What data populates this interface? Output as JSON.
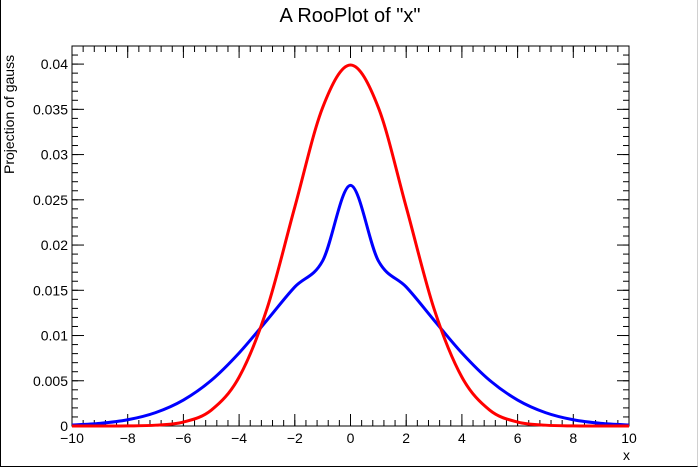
{
  "chart_data": {
    "type": "line",
    "title": "A RooPlot of \"x\"",
    "xlabel": "x",
    "ylabel": "Projection of gauss",
    "xlim": [
      -10,
      10
    ],
    "ylim": [
      0,
      0.042
    ],
    "grid": false,
    "x_ticks": [
      "−10",
      "−8",
      "−6",
      "−4",
      "−2",
      "0",
      "2",
      "4",
      "6",
      "8",
      "10"
    ],
    "y_ticks": [
      "0",
      "0.005",
      "0.01",
      "0.015",
      "0.02",
      "0.025",
      "0.03",
      "0.035",
      "0.04"
    ],
    "series": [
      {
        "color": "#0000ff",
        "x": [
          -10,
          -9,
          -8,
          -7,
          -6,
          -5,
          -4,
          -3,
          -2,
          -1,
          0,
          1,
          2,
          3,
          4,
          5,
          6,
          7,
          8,
          9,
          10
        ],
        "y": [
          0.00011,
          0.00029,
          0.00069,
          0.00148,
          0.00287,
          0.00504,
          0.00807,
          0.01169,
          0.01537,
          0.01826,
          0.0266,
          0.01826,
          0.01537,
          0.01169,
          0.00807,
          0.00504,
          0.00287,
          0.00148,
          0.00069,
          0.00029,
          0.00011
        ]
      },
      {
        "color": "#ff0000",
        "x": [
          -10,
          -9,
          -8,
          -7,
          -6,
          -5,
          -4,
          -3,
          -2,
          -1,
          0,
          1,
          2,
          3,
          4,
          5,
          6,
          7,
          8,
          9,
          10
        ],
        "y": [
          0.0,
          0.0,
          1e-05,
          9e-05,
          0.00044,
          0.00175,
          0.0054,
          0.01295,
          0.0242,
          0.0352,
          0.0399,
          0.0352,
          0.0242,
          0.01295,
          0.0054,
          0.00175,
          0.00044,
          9e-05,
          1e-05,
          0.0,
          0.0
        ]
      }
    ]
  }
}
